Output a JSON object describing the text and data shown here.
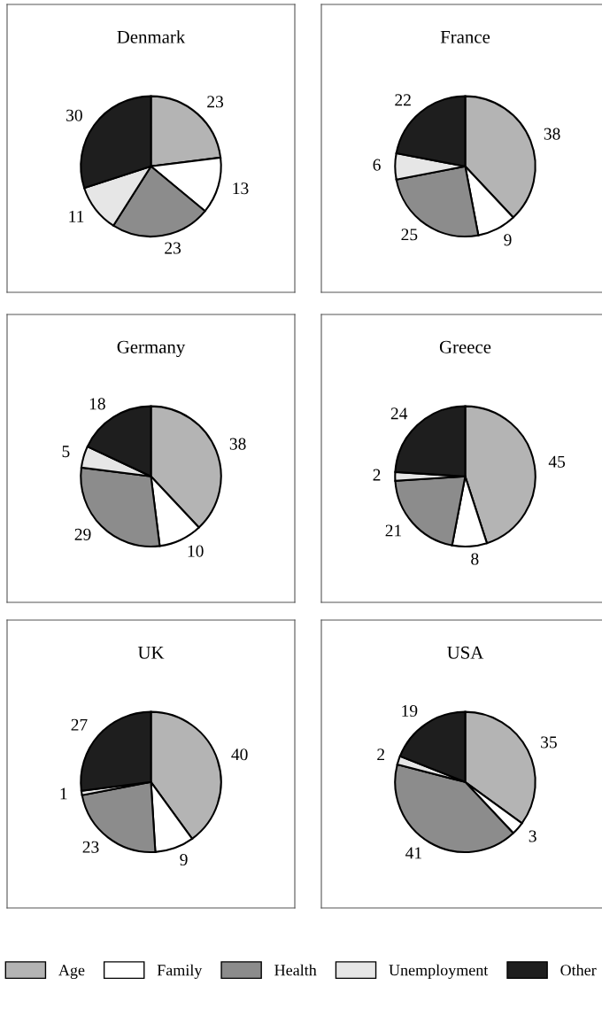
{
  "chart_data": [
    {
      "type": "pie",
      "title": "Denmark",
      "categories": [
        "Age",
        "Family",
        "Health",
        "Unemployment",
        "Other"
      ],
      "values": [
        23,
        13,
        23,
        11,
        30
      ],
      "colors": [
        "#b4b4b4",
        "#ffffff",
        "#8c8c8c",
        "#e6e6e6",
        "#1e1e1e"
      ],
      "data_labels": true,
      "legend": "bottom"
    },
    {
      "type": "pie",
      "title": "France",
      "categories": [
        null,
        null,
        null,
        null,
        null
      ],
      "values": [
        38,
        9,
        25,
        6,
        22
      ],
      "colors": [
        "#b4b4b4",
        "#ffffff",
        "#8c8c8c",
        "#e6e6e6",
        "#1e1e1e"
      ],
      "data_labels": true
    },
    {
      "type": "pie",
      "title": "Germany",
      "categories": [
        null,
        null,
        null,
        null,
        null
      ],
      "values": [
        38,
        10,
        29,
        5,
        18
      ],
      "colors": [
        "#b4b4b4",
        "#ffffff",
        "#8c8c8c",
        "#e6e6e6",
        "#1e1e1e"
      ],
      "data_labels": true
    },
    {
      "type": "pie",
      "title": "Greece",
      "categories": [
        null,
        null,
        null,
        null,
        null
      ],
      "values": [
        45,
        8,
        21,
        2,
        24
      ],
      "colors": [
        "#b4b4b4",
        "#ffffff",
        "#8c8c8c",
        "#e6e6e6",
        "#1e1e1e"
      ],
      "data_labels": true
    },
    {
      "type": "pie",
      "title": "UK",
      "categories": [
        null,
        null,
        null,
        null,
        null
      ],
      "values": [
        40,
        9,
        23,
        1,
        27
      ],
      "colors": [
        "#b4b4b4",
        "#ffffff",
        "#8c8c8c",
        "#e6e6e6",
        "#1e1e1e"
      ],
      "data_labels": true
    },
    {
      "type": "pie",
      "title": "USA",
      "categories": [
        null,
        null,
        null,
        null,
        null
      ],
      "values": [
        35,
        3,
        41,
        2,
        19
      ],
      "colors": [
        "#b4b4b4",
        "#ffffff",
        "#8c8c8c",
        "#e6e6e6",
        "#1e1e1e"
      ],
      "data_labels": true
    }
  ]
}
